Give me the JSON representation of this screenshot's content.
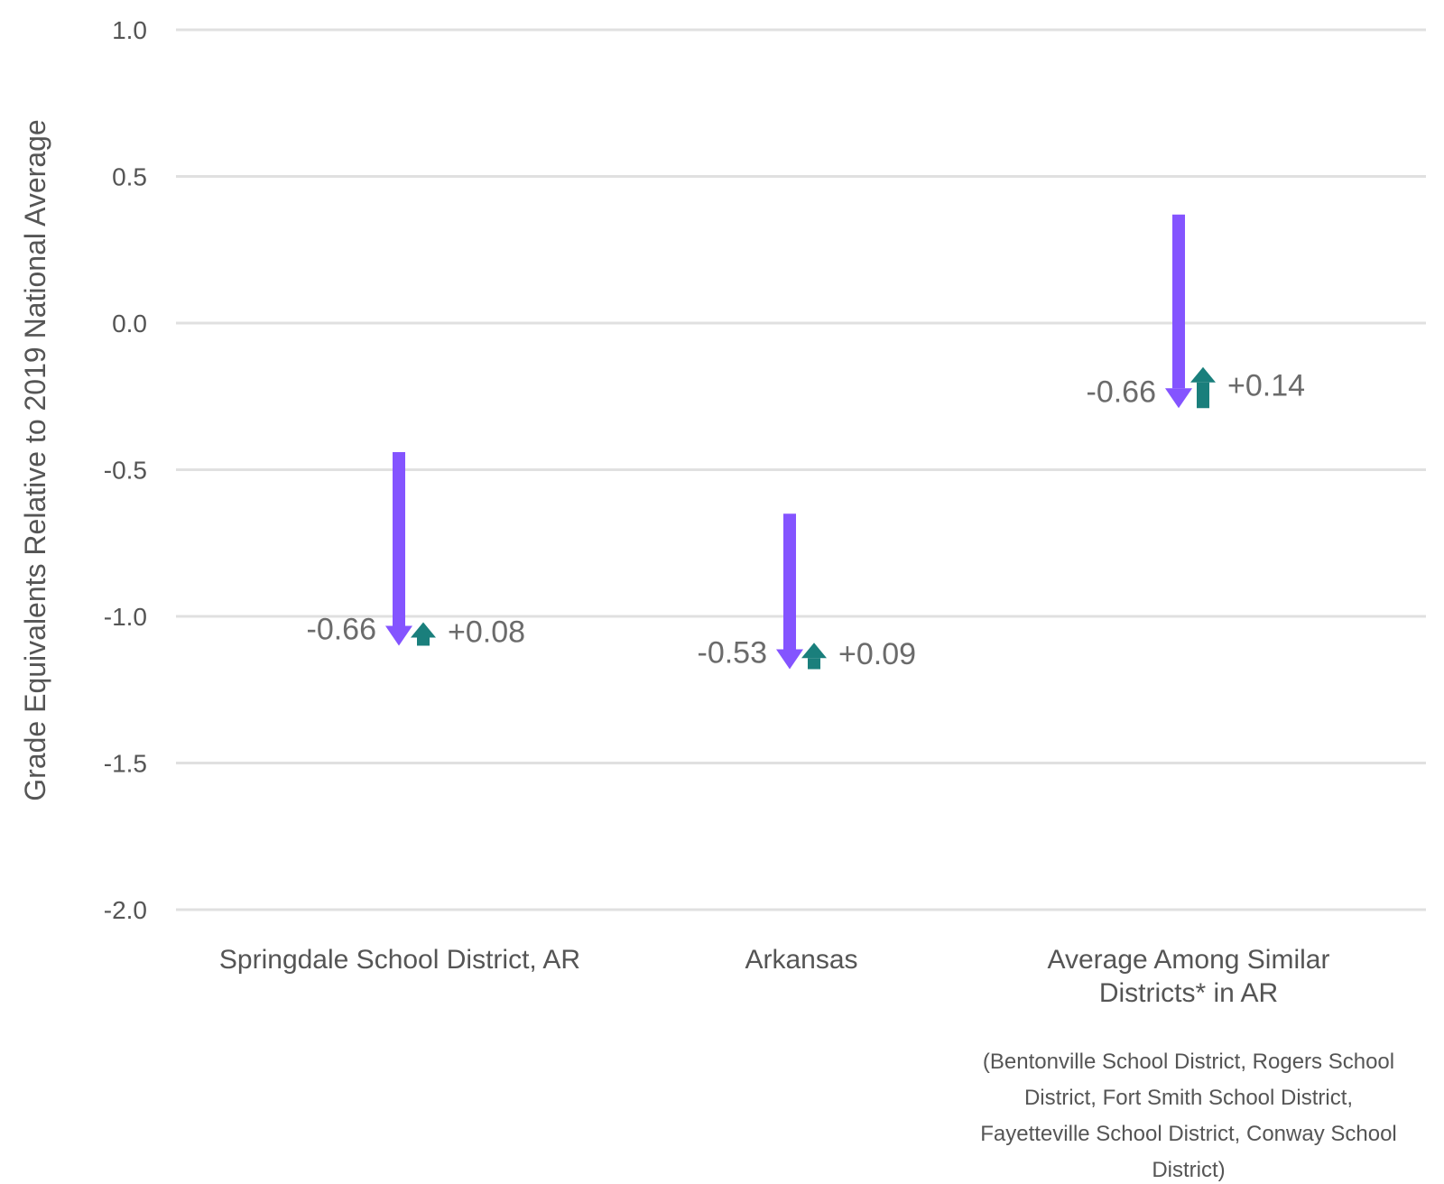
{
  "chart_data": {
    "type": "arrow",
    "ylabel": "Grade Equivalents Relative to 2019 National Average",
    "ylim": [
      -2.0,
      1.0
    ],
    "yticks": [
      1.0,
      0.5,
      0.0,
      -0.5,
      -1.0,
      -1.5,
      -2.0
    ],
    "ytick_labels": [
      "1.0",
      "0.5",
      "0.0",
      "-0.5",
      "-1.0",
      "-1.5",
      "-2.0"
    ],
    "grid": true,
    "colors": {
      "decline": "#8454ff",
      "recovery": "#1a7f7c"
    },
    "categories": [
      {
        "label_lines": [
          "Springdale School District, AR"
        ],
        "note_lines": [],
        "start": -0.44,
        "decline": -0.66,
        "decline_label": "-0.66",
        "recovery": 0.08,
        "recovery_label": "+0.08"
      },
      {
        "label_lines": [
          "Arkansas"
        ],
        "note_lines": [],
        "start": -0.65,
        "decline": -0.53,
        "decline_label": "-0.53",
        "recovery": 0.09,
        "recovery_label": "+0.09"
      },
      {
        "label_lines": [
          "Average Among Similar",
          "Districts* in AR"
        ],
        "note_lines": [
          "(Bentonville School District, Rogers School",
          "District, Fort Smith School District,",
          "Fayetteville School District, Conway School",
          "District)"
        ],
        "start": 0.37,
        "decline": -0.66,
        "decline_label": "-0.66",
        "recovery": 0.14,
        "recovery_label": "+0.14"
      }
    ]
  }
}
